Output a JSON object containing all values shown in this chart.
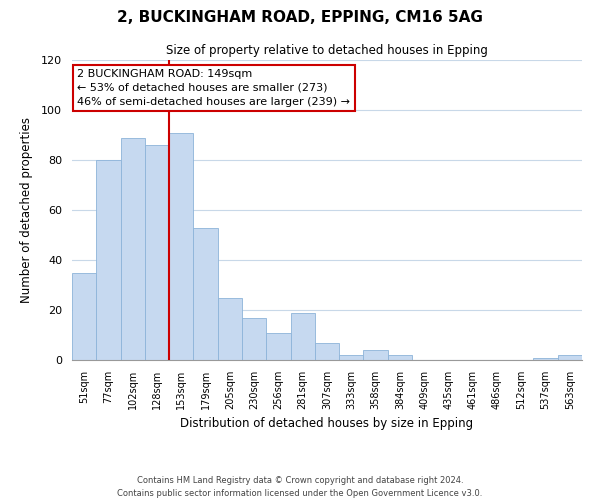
{
  "title_line1": "2, BUCKINGHAM ROAD, EPPING, CM16 5AG",
  "title_line2": "Size of property relative to detached houses in Epping",
  "xlabel": "Distribution of detached houses by size in Epping",
  "ylabel": "Number of detached properties",
  "categories": [
    "51sqm",
    "77sqm",
    "102sqm",
    "128sqm",
    "153sqm",
    "179sqm",
    "205sqm",
    "230sqm",
    "256sqm",
    "281sqm",
    "307sqm",
    "333sqm",
    "358sqm",
    "384sqm",
    "409sqm",
    "435sqm",
    "461sqm",
    "486sqm",
    "512sqm",
    "537sqm",
    "563sqm"
  ],
  "values": [
    35,
    80,
    89,
    86,
    91,
    53,
    25,
    17,
    11,
    19,
    7,
    2,
    4,
    2,
    0,
    0,
    0,
    0,
    0,
    1,
    2
  ],
  "bar_color": "#c6d9f0",
  "bar_edge_color": "#8db4d9",
  "vline_x_idx": 4,
  "vline_color": "#cc0000",
  "ylim": [
    0,
    120
  ],
  "yticks": [
    0,
    20,
    40,
    60,
    80,
    100,
    120
  ],
  "annotation_title": "2 BUCKINGHAM ROAD: 149sqm",
  "annotation_line1": "← 53% of detached houses are smaller (273)",
  "annotation_line2": "46% of semi-detached houses are larger (239) →",
  "annotation_box_color": "#ffffff",
  "annotation_box_edge_color": "#cc0000",
  "footnote_line1": "Contains HM Land Registry data © Crown copyright and database right 2024.",
  "footnote_line2": "Contains public sector information licensed under the Open Government Licence v3.0.",
  "background_color": "#ffffff",
  "grid_color": "#c8d8e8",
  "bar_width": 1.0,
  "figsize": [
    6.0,
    5.0
  ],
  "dpi": 100
}
